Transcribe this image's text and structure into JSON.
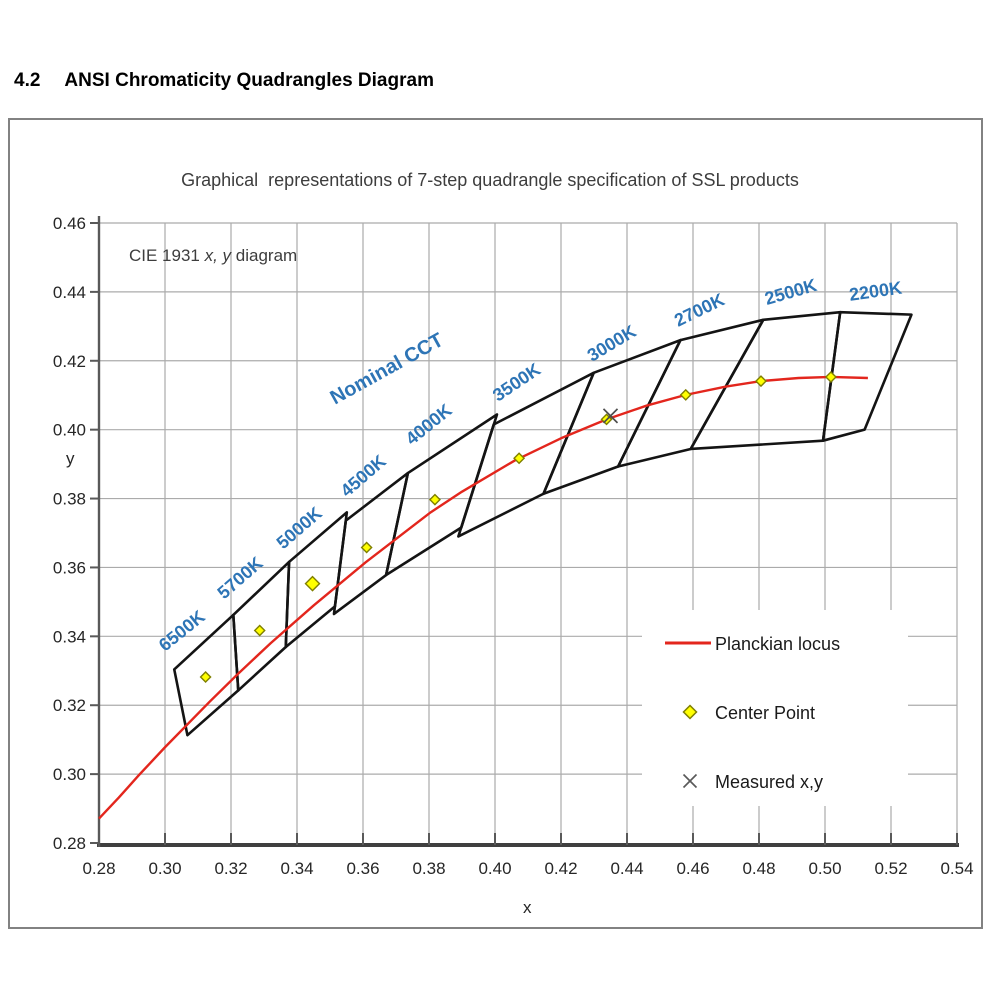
{
  "page": {
    "heading_number": "4.2",
    "heading_text": "ANSI Chromaticity Quadrangles Diagram"
  },
  "figure": {
    "title": "Graphical  representations of 7-step quadrangle specification of SSL products",
    "subtitle": {
      "prefix": "CIE 1931 ",
      "italic": "x, y",
      "suffix": " diagram"
    },
    "legend": [
      {
        "type": "line",
        "label": "Planckian locus",
        "color": "#e3261d"
      },
      {
        "type": "diamond",
        "label": "Center Point",
        "fill": "#ffff00",
        "stroke": "#7f7f00"
      },
      {
        "type": "cross",
        "label": "Measured x,y",
        "color": "#595959"
      }
    ]
  },
  "chart_data": {
    "type": "scatter",
    "title": "Graphical representations of 7-step quadrangle specification of SSL products",
    "subtitle": "CIE 1931 x, y diagram",
    "xlabel": "x",
    "ylabel": "y",
    "xlim": [
      0.28,
      0.54
    ],
    "ylim": [
      0.28,
      0.46
    ],
    "xticks": [
      "0.28",
      "0.30",
      "0.32",
      "0.34",
      "0.36",
      "0.38",
      "0.40",
      "0.42",
      "0.44",
      "0.46",
      "0.48",
      "0.50",
      "0.52",
      "0.54"
    ],
    "yticks": [
      "0.28",
      "0.30",
      "0.32",
      "0.34",
      "0.36",
      "0.38",
      "0.40",
      "0.42",
      "0.44",
      "0.46"
    ],
    "grid": true,
    "grid_color": "#ababab",
    "quad_color": "#141414",
    "locus_color": "#e3261d",
    "cct_label_color": "#2e75b6",
    "annotation": {
      "text": "Nominal CCT",
      "x": 0.3515,
      "y": 0.4072,
      "angle": -29,
      "font_size": 20
    },
    "quadrangles": [
      {
        "cct": "6500K",
        "vertices": [
          [
            0.3028,
            0.3304
          ],
          [
            0.3207,
            0.3462
          ],
          [
            0.3222,
            0.3243
          ],
          [
            0.3068,
            0.3113
          ]
        ],
        "label_x": 0.3,
        "label_y": 0.3354,
        "label_angle": -39
      },
      {
        "cct": "5700K",
        "vertices": [
          [
            0.3207,
            0.3462
          ],
          [
            0.3376,
            0.3616
          ],
          [
            0.3366,
            0.3369
          ],
          [
            0.3222,
            0.3243
          ]
        ],
        "label_x": 0.3179,
        "label_y": 0.3506,
        "label_angle": -41
      },
      {
        "cct": "5000K",
        "vertices": [
          [
            0.3376,
            0.3616
          ],
          [
            0.3551,
            0.376
          ],
          [
            0.3515,
            0.3487
          ],
          [
            0.3366,
            0.3369
          ]
        ],
        "label_x": 0.3358,
        "label_y": 0.3651,
        "label_angle": -41
      },
      {
        "cct": "4500K",
        "vertices": [
          [
            0.3548,
            0.3736
          ],
          [
            0.3736,
            0.3874
          ],
          [
            0.367,
            0.3578
          ],
          [
            0.3512,
            0.3465
          ]
        ],
        "label_x": 0.3552,
        "label_y": 0.3802,
        "label_angle": -41
      },
      {
        "cct": "4000K",
        "vertices": [
          [
            0.3736,
            0.3874
          ],
          [
            0.4006,
            0.4044
          ],
          [
            0.3898,
            0.3716
          ],
          [
            0.367,
            0.3578
          ]
        ],
        "label_x": 0.3748,
        "label_y": 0.3953,
        "label_angle": -39
      },
      {
        "cct": "3500K",
        "vertices": [
          [
            0.3996,
            0.4015
          ],
          [
            0.4299,
            0.4165
          ],
          [
            0.4147,
            0.3814
          ],
          [
            0.3889,
            0.369
          ]
        ],
        "label_x": 0.4009,
        "label_y": 0.408,
        "label_angle": -34
      },
      {
        "cct": "3000K",
        "vertices": [
          [
            0.4299,
            0.4165
          ],
          [
            0.4562,
            0.426
          ],
          [
            0.4373,
            0.3893
          ],
          [
            0.4147,
            0.3814
          ]
        ],
        "label_x": 0.4294,
        "label_y": 0.4196,
        "label_angle": -31
      },
      {
        "cct": "2700K",
        "vertices": [
          [
            0.4562,
            0.426
          ],
          [
            0.4813,
            0.4319
          ],
          [
            0.4593,
            0.3944
          ],
          [
            0.4373,
            0.3893
          ]
        ],
        "label_x": 0.4555,
        "label_y": 0.4298,
        "label_angle": -26
      },
      {
        "cct": "2500K",
        "vertices": [
          [
            0.4813,
            0.4319
          ],
          [
            0.5046,
            0.4341
          ],
          [
            0.4994,
            0.3968
          ],
          [
            0.4593,
            0.3944
          ]
        ],
        "label_x": 0.4824,
        "label_y": 0.4362,
        "label_angle": -16
      },
      {
        "cct": "2200K",
        "vertices": [
          [
            0.5046,
            0.4341
          ],
          [
            0.5262,
            0.4334
          ],
          [
            0.512,
            0.4
          ],
          [
            0.4994,
            0.3968
          ]
        ],
        "label_x": 0.5076,
        "label_y": 0.4374,
        "label_angle": -8
      }
    ],
    "center_points": [
      {
        "cct": "6500K",
        "x": 0.3123,
        "y": 0.3282,
        "size": 5
      },
      {
        "cct": "5700K",
        "x": 0.3287,
        "y": 0.3417,
        "size": 5
      },
      {
        "cct": "5000K",
        "x": 0.3447,
        "y": 0.3553,
        "size": 7
      },
      {
        "cct": "4500K",
        "x": 0.3611,
        "y": 0.3658,
        "size": 5
      },
      {
        "cct": "4000K",
        "x": 0.3818,
        "y": 0.3797,
        "size": 5
      },
      {
        "cct": "3500K",
        "x": 0.4073,
        "y": 0.3917,
        "size": 5
      },
      {
        "cct": "3000K",
        "x": 0.4338,
        "y": 0.403,
        "size": 5
      },
      {
        "cct": "2700K",
        "x": 0.4578,
        "y": 0.4101,
        "size": 5
      },
      {
        "cct": "2500K",
        "x": 0.4806,
        "y": 0.4141,
        "size": 5
      },
      {
        "cct": "2200K",
        "x": 0.5018,
        "y": 0.4153,
        "size": 5
      }
    ],
    "measured_points": [
      {
        "x": 0.435,
        "y": 0.404
      }
    ],
    "planckian_locus": [
      [
        0.28,
        0.2871
      ],
      [
        0.286,
        0.2932
      ],
      [
        0.292,
        0.2996
      ],
      [
        0.3,
        0.3078
      ],
      [
        0.3135,
        0.321
      ],
      [
        0.322,
        0.329
      ],
      [
        0.332,
        0.338
      ],
      [
        0.3451,
        0.349
      ],
      [
        0.3608,
        0.3615
      ],
      [
        0.3805,
        0.376
      ],
      [
        0.39,
        0.382
      ],
      [
        0.4059,
        0.391
      ],
      [
        0.42,
        0.3975
      ],
      [
        0.4338,
        0.403
      ],
      [
        0.446,
        0.407
      ],
      [
        0.4578,
        0.4101
      ],
      [
        0.47,
        0.4125
      ],
      [
        0.4806,
        0.4141
      ],
      [
        0.492,
        0.415
      ],
      [
        0.5018,
        0.4153
      ],
      [
        0.513,
        0.415
      ]
    ],
    "legend_position": "lower right"
  }
}
